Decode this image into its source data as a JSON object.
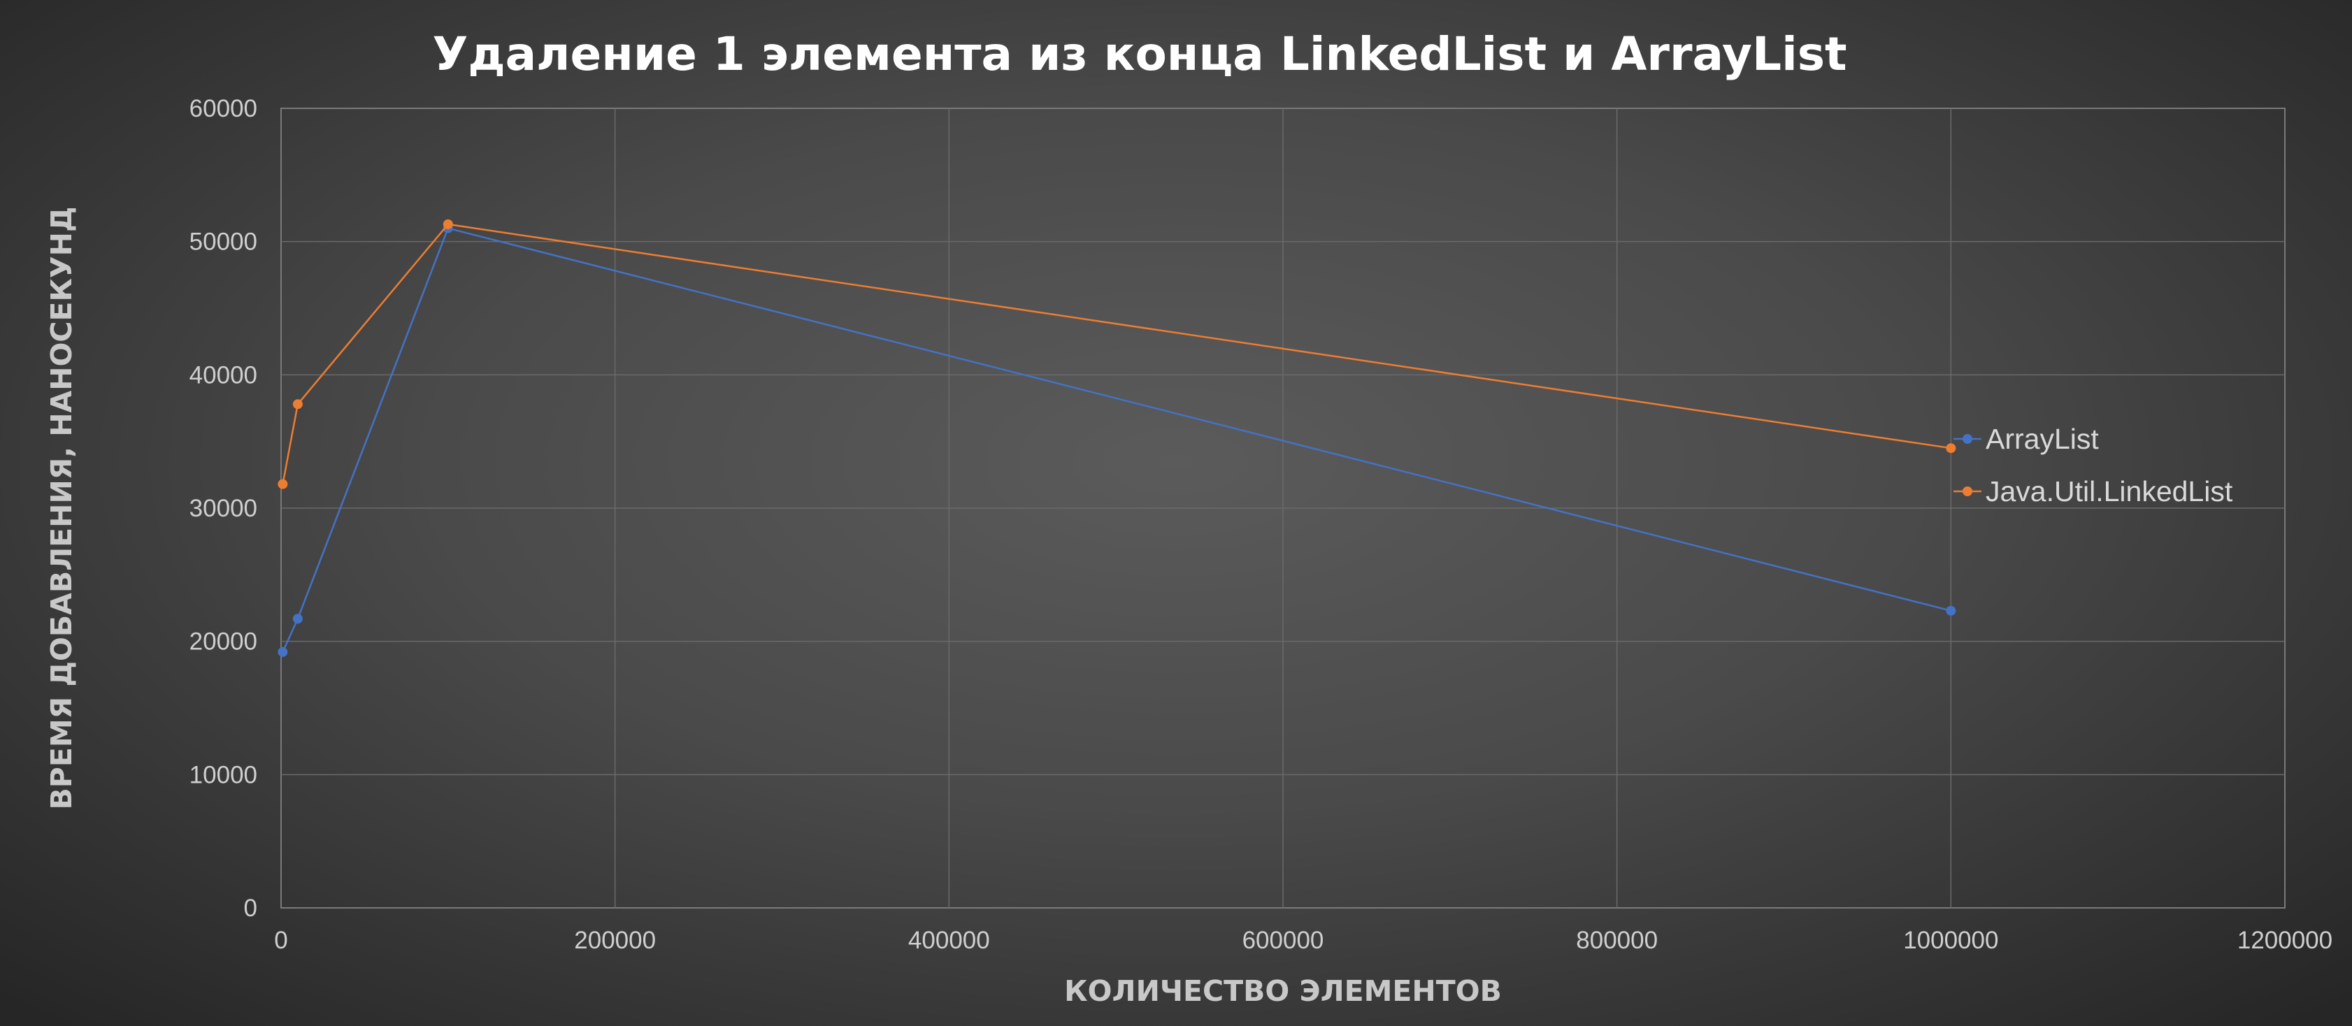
{
  "chart_data": {
    "type": "line",
    "title": "Удаление 1 элемента из конца LinkedList и ArrayList",
    "xlabel": "КОЛИЧЕСТВО ЭЛЕМЕНТОВ",
    "ylabel": "ВРЕМЯ ДОБАВЛЕНИЯ, НАНОСЕКУНД",
    "xlim": [
      0,
      1200000
    ],
    "ylim": [
      0,
      60000
    ],
    "x_ticks": [
      0,
      200000,
      400000,
      600000,
      800000,
      1000000,
      1200000
    ],
    "x_tick_labels": [
      "0",
      "200000",
      "400000",
      "600000",
      "800000",
      "1000000",
      "1200000"
    ],
    "y_ticks": [
      0,
      10000,
      20000,
      30000,
      40000,
      50000,
      60000
    ],
    "y_tick_labels": [
      "0",
      "10000",
      "20000",
      "30000",
      "40000",
      "50000",
      "60000"
    ],
    "grid": true,
    "legend_position": "right",
    "x": [
      1000,
      10000,
      100000,
      1000000
    ],
    "series": [
      {
        "name": "ArrayList",
        "color": "#4472c4",
        "values": [
          19200,
          21700,
          51000,
          22300
        ]
      },
      {
        "name": "Java.Util.LinkedList",
        "color": "#ed7d31",
        "values": [
          31800,
          37800,
          51300,
          34500
        ]
      }
    ]
  }
}
